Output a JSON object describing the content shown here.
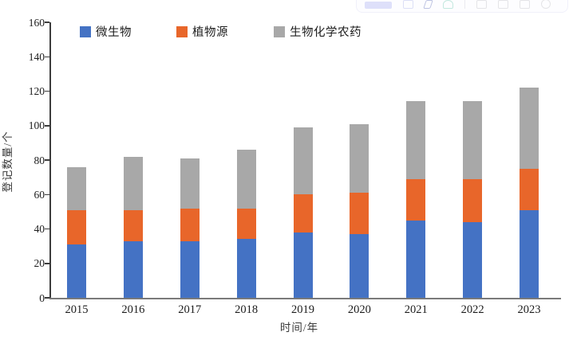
{
  "page": {
    "background": "#ffffff"
  },
  "ghost_toolbar": {
    "description": "faint overlay toolbar cropped at top edge of screenshot",
    "items": [
      {
        "name": "ai-tool-label"
      },
      {
        "name": "image-icon"
      },
      {
        "name": "pen-icon"
      },
      {
        "name": "check-icon"
      },
      {
        "name": "divider"
      },
      {
        "name": "window-icon"
      },
      {
        "name": "printer-icon"
      },
      {
        "name": "square-icon"
      },
      {
        "name": "circle-icon"
      }
    ]
  },
  "chart_data": {
    "type": "bar",
    "stacked": true,
    "title": "",
    "xlabel": "时间/年",
    "ylabel": "登记数量/个",
    "ylim": [
      0,
      160
    ],
    "ytick_interval": 20,
    "yticks": [
      0,
      20,
      40,
      60,
      80,
      100,
      120,
      140,
      160
    ],
    "grid": false,
    "legend_position": "top",
    "categories": [
      "2015",
      "2016",
      "2017",
      "2018",
      "2019",
      "2020",
      "2021",
      "2022",
      "2023"
    ],
    "series": [
      {
        "name": "微生物",
        "color": "#4472C4",
        "values": [
          31,
          33,
          33,
          34,
          38,
          37,
          45,
          44,
          51
        ]
      },
      {
        "name": "植物源",
        "color": "#E8662A",
        "values": [
          20,
          18,
          19,
          18,
          22,
          24,
          24,
          25,
          24
        ]
      },
      {
        "name": "生物化学农药",
        "color": "#A8A8A8",
        "values": [
          25,
          31,
          29,
          34,
          39,
          40,
          45,
          45,
          47
        ]
      }
    ],
    "totals": [
      76,
      82,
      81,
      86,
      99,
      101,
      114,
      114,
      122
    ],
    "axis_color": "#3c3c3c",
    "baseline_color": "#7a7a7a"
  }
}
